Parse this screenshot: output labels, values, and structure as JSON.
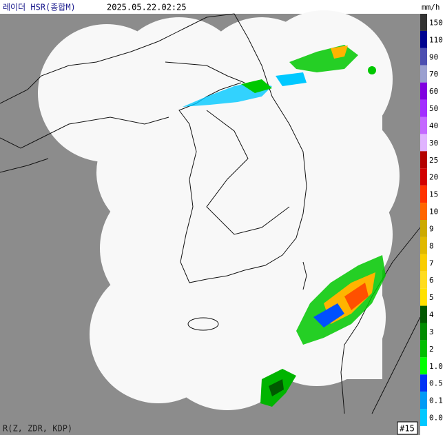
{
  "header": {
    "title": "레이더 HSR(종합M)",
    "timestamp": "2025.05.22.02:25",
    "unit": "mm/h"
  },
  "legend": {
    "items": [
      {
        "label": "150",
        "color": "#333333"
      },
      {
        "label": "110",
        "color": "#000390"
      },
      {
        "label": "90",
        "color": "#4c4eb1"
      },
      {
        "label": "70",
        "color": "#9a9fd0"
      },
      {
        "label": "60",
        "color": "#8000e0"
      },
      {
        "label": "50",
        "color": "#a32eff"
      },
      {
        "label": "40",
        "color": "#c469ff"
      },
      {
        "label": "30",
        "color": "#e0b4ff"
      },
      {
        "label": "25",
        "color": "#b40000"
      },
      {
        "label": "20",
        "color": "#d20000"
      },
      {
        "label": "15",
        "color": "#ff3200"
      },
      {
        "label": "10",
        "color": "#ff6600"
      },
      {
        "label": "9",
        "color": "#ccaa00"
      },
      {
        "label": "8",
        "color": "#e0b900"
      },
      {
        "label": "7",
        "color": "#f9cd00"
      },
      {
        "label": "6",
        "color": "#ffdc1f"
      },
      {
        "label": "5",
        "color": "#ffe100"
      },
      {
        "label": "4",
        "color": "#005a00"
      },
      {
        "label": "3",
        "color": "#008c00"
      },
      {
        "label": "2",
        "color": "#00be00"
      },
      {
        "label": "1.0",
        "color": "#00ff00"
      },
      {
        "label": "0.5",
        "color": "#0033f5"
      },
      {
        "label": "0.1",
        "color": "#009bf5"
      },
      {
        "label": "0.0",
        "color": "#00c8ff"
      }
    ]
  },
  "footer": {
    "method": "R(Z, ZDR, KDP)",
    "frame": "#15"
  }
}
